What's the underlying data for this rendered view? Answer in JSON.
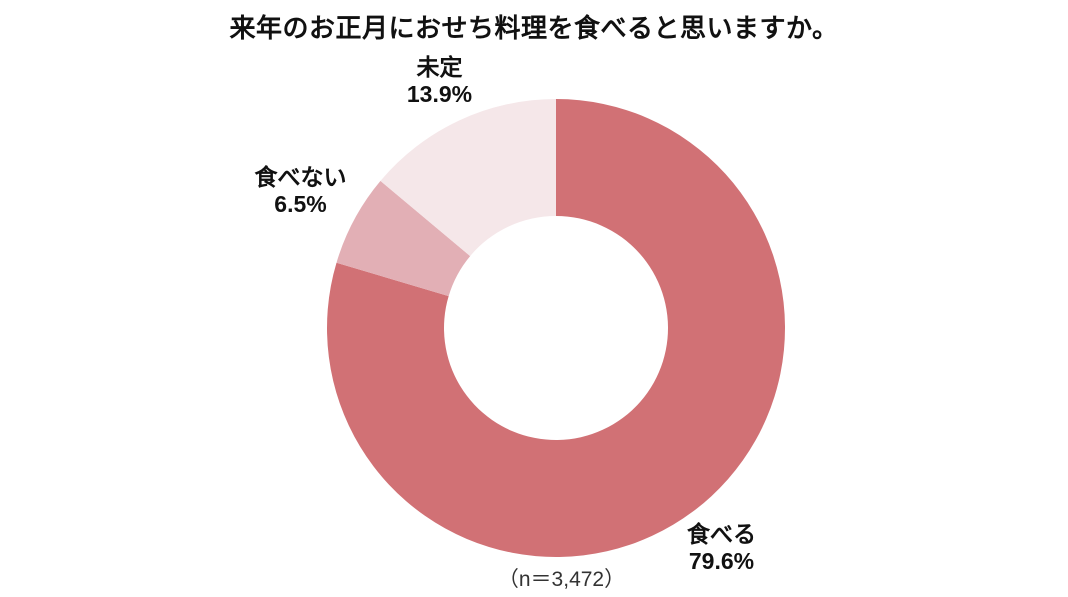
{
  "chart_data": {
    "type": "pie",
    "donut": true,
    "title": "来年のお正月におせち料理を食べると思いますか。",
    "note": "（n＝3,472）",
    "sample_size": 3472,
    "start_angle_deg": 0,
    "direction": "clockwise",
    "inner_radius_ratio": 0.49,
    "legend_position": "outside-labels",
    "background_color": "#ffffff",
    "segments": [
      {
        "label": "食べる",
        "value_pct": 79.6,
        "display_pct": "79.6%",
        "color": "#D17175"
      },
      {
        "label": "食べない",
        "value_pct": 6.5,
        "display_pct": "6.5%",
        "color": "#E2AFB5"
      },
      {
        "label": "未定",
        "value_pct": 13.9,
        "display_pct": "13.9%",
        "color": "#F5E7E9"
      }
    ]
  }
}
